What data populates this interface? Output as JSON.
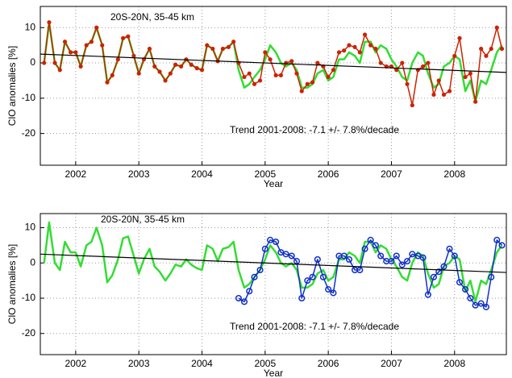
{
  "chart_data": [
    {
      "type": "line",
      "annotations": [
        "20S-20N, 35-45 km",
        "Trend 2001-2008: -7.1 +/- 7.8%/decade"
      ],
      "xlabel": "Year",
      "ylabel": "ClO anomalies [%]",
      "xlim": [
        2001.44,
        2008.82
      ],
      "xticks": [
        2002,
        2003,
        2004,
        2005,
        2006,
        2007,
        2008
      ],
      "ylim": [
        -29,
        16
      ],
      "yticks": [
        -20,
        -10,
        0,
        10
      ],
      "grid": true,
      "series": [
        {
          "color": "#33dd33",
          "marker": "none",
          "x": [
            2001.5,
            2001.58,
            2001.67,
            2001.75,
            2001.83,
            2001.92,
            2002,
            2002.08,
            2002.17,
            2002.25,
            2002.33,
            2002.42,
            2002.5,
            2002.58,
            2002.67,
            2002.75,
            2002.83,
            2002.92,
            2003,
            2003.08,
            2003.17,
            2003.25,
            2003.33,
            2003.42,
            2003.5,
            2003.58,
            2003.67,
            2003.75,
            2003.83,
            2003.92,
            2004,
            2004.08,
            2004.17,
            2004.25,
            2004.33,
            2004.42,
            2004.5,
            2004.58,
            2004.67,
            2004.75,
            2004.83,
            2004.92,
            2005,
            2005.08,
            2005.17,
            2005.25,
            2005.33,
            2005.42,
            2005.5,
            2005.58,
            2005.67,
            2005.75,
            2005.83,
            2005.92,
            2006,
            2006.08,
            2006.17,
            2006.25,
            2006.33,
            2006.42,
            2006.5,
            2006.58,
            2006.67,
            2006.75,
            2006.83,
            2006.92,
            2007,
            2007.08,
            2007.17,
            2007.25,
            2007.33,
            2007.42,
            2007.5,
            2007.58,
            2007.67,
            2007.75,
            2007.83,
            2007.92,
            2008,
            2008.08,
            2008.17,
            2008.25,
            2008.33,
            2008.42,
            2008.5,
            2008.58,
            2008.67,
            2008.75
          ],
          "values": [
            0,
            11.5,
            0,
            -2,
            6,
            3,
            3,
            -1,
            5,
            6,
            10,
            5,
            -5.5,
            -3.5,
            1,
            7,
            7.5,
            2,
            -3,
            1,
            4,
            -1,
            -2.5,
            -5,
            -3,
            -0.5,
            -1,
            1,
            -0.5,
            -1.5,
            -2,
            5,
            4,
            0.5,
            4,
            4.5,
            6,
            -2,
            -7,
            -6,
            -4,
            -2,
            1,
            5,
            3,
            0,
            -1,
            0,
            -2,
            -7,
            -7,
            -6,
            -3,
            -2,
            -5,
            -4,
            1,
            1,
            3,
            2,
            0,
            6,
            6,
            3,
            5,
            4,
            1,
            -1,
            -4,
            -5,
            0,
            3,
            2,
            -3,
            -7,
            -6,
            -1,
            0,
            2,
            1,
            -8,
            -5,
            -11,
            -5,
            -6,
            -2,
            3,
            5
          ]
        },
        {
          "color": "#cc2200",
          "marker": "dot",
          "x": [
            2001.5,
            2001.58,
            2001.67,
            2001.75,
            2001.83,
            2001.92,
            2002,
            2002.08,
            2002.17,
            2002.25,
            2002.33,
            2002.42,
            2002.5,
            2002.58,
            2002.67,
            2002.75,
            2002.83,
            2002.92,
            2003,
            2003.08,
            2003.17,
            2003.25,
            2003.33,
            2003.42,
            2003.5,
            2003.58,
            2003.67,
            2003.75,
            2003.83,
            2003.92,
            2004,
            2004.08,
            2004.17,
            2004.25,
            2004.33,
            2004.42,
            2004.5,
            2004.58,
            2004.67,
            2004.75,
            2004.83,
            2004.92,
            2005,
            2005.08,
            2005.17,
            2005.25,
            2005.33,
            2005.42,
            2005.5,
            2005.58,
            2005.67,
            2005.75,
            2005.83,
            2005.92,
            2006,
            2006.08,
            2006.17,
            2006.25,
            2006.33,
            2006.42,
            2006.5,
            2006.58,
            2006.67,
            2006.75,
            2006.83,
            2006.92,
            2007,
            2007.08,
            2007.17,
            2007.25,
            2007.33,
            2007.42,
            2007.5,
            2007.58,
            2007.67,
            2007.75,
            2007.83,
            2007.92,
            2008,
            2008.08,
            2008.17,
            2008.25,
            2008.33,
            2008.42,
            2008.5,
            2008.58,
            2008.67,
            2008.75
          ],
          "values": [
            0,
            11.5,
            0,
            -2,
            6,
            3,
            3,
            -1,
            5,
            6,
            10,
            5,
            -5.5,
            -3.5,
            1,
            7,
            7.5,
            2,
            -3,
            1,
            4,
            -1,
            -2.5,
            -5,
            -3,
            -0.5,
            -1,
            1,
            -0.5,
            -1.5,
            -2,
            5,
            4,
            0.5,
            4,
            4.5,
            6,
            0,
            -4,
            -3,
            -6,
            -5,
            3,
            1,
            -3.5,
            -3.5,
            0,
            0.5,
            -3,
            -8,
            -6,
            -5.5,
            0,
            -1,
            -4,
            -2,
            3,
            3.5,
            5,
            4.5,
            3,
            8,
            5,
            4,
            0,
            -1,
            -1,
            -2,
            0,
            -6,
            -12,
            -2,
            -1,
            0,
            -9,
            -5,
            -9,
            -8,
            2,
            7,
            -4,
            -3,
            -11,
            4,
            2,
            4,
            10,
            4
          ]
        }
      ],
      "trend": {
        "color": "#000000",
        "x": [
          2001.44,
          2008.82
        ],
        "values": [
          2.5,
          -2.7
        ]
      }
    },
    {
      "type": "line",
      "annotations": [
        "20S-20N, 35-45 km",
        "Trend 2001-2008: -7.1 +/- 7.8%/decade"
      ],
      "xlabel": "Year",
      "ylabel": "ClO anomalies [%]",
      "xlim": [
        2001.44,
        2008.82
      ],
      "xticks": [
        2002,
        2003,
        2004,
        2005,
        2006,
        2007,
        2008
      ],
      "ylim": [
        -26,
        14
      ],
      "yticks": [
        -20,
        -10,
        0,
        10
      ],
      "grid": true,
      "series": [
        {
          "color": "#33dd33",
          "marker": "none",
          "x": [
            2001.5,
            2001.58,
            2001.67,
            2001.75,
            2001.83,
            2001.92,
            2002,
            2002.08,
            2002.17,
            2002.25,
            2002.33,
            2002.42,
            2002.5,
            2002.58,
            2002.67,
            2002.75,
            2002.83,
            2002.92,
            2003,
            2003.08,
            2003.17,
            2003.25,
            2003.33,
            2003.42,
            2003.5,
            2003.58,
            2003.67,
            2003.75,
            2003.83,
            2003.92,
            2004,
            2004.08,
            2004.17,
            2004.25,
            2004.33,
            2004.42,
            2004.5,
            2004.58,
            2004.67,
            2004.75,
            2004.83,
            2004.92,
            2005,
            2005.08,
            2005.17,
            2005.25,
            2005.33,
            2005.42,
            2005.5,
            2005.58,
            2005.67,
            2005.75,
            2005.83,
            2005.92,
            2006,
            2006.08,
            2006.17,
            2006.25,
            2006.33,
            2006.42,
            2006.5,
            2006.58,
            2006.67,
            2006.75,
            2006.83,
            2006.92,
            2007,
            2007.08,
            2007.17,
            2007.25,
            2007.33,
            2007.42,
            2007.5,
            2007.58,
            2007.67,
            2007.75,
            2007.83,
            2007.92,
            2008,
            2008.08,
            2008.17,
            2008.25,
            2008.33,
            2008.42,
            2008.5,
            2008.58,
            2008.67,
            2008.75
          ],
          "values": [
            0,
            11.5,
            0,
            -2,
            6,
            3,
            3,
            -1,
            5,
            6,
            10,
            5,
            -5.5,
            -3.5,
            1,
            7,
            7.5,
            2,
            -3,
            1,
            4,
            -1,
            -2.5,
            -5,
            -3,
            -0.5,
            -1,
            1,
            -0.5,
            -1.5,
            -2,
            5,
            4,
            0.5,
            4,
            4.5,
            6,
            -2,
            -7,
            -6,
            -4,
            -2,
            1,
            5,
            3,
            0,
            -1,
            0,
            -2,
            -7,
            -7,
            -6,
            -3,
            -2,
            -5,
            -4,
            1,
            1,
            3,
            2,
            0,
            6,
            6,
            3,
            5,
            4,
            1,
            -1,
            -4,
            -5,
            0,
            3,
            2,
            -3,
            -7,
            -6,
            -1,
            0,
            2,
            1,
            -8,
            -5,
            -11,
            -5,
            -6,
            -2,
            3,
            5
          ]
        },
        {
          "color": "#1030c8",
          "marker": "circle",
          "x": [
            2004.58,
            2004.67,
            2004.75,
            2004.83,
            2004.92,
            2005,
            2005.08,
            2005.17,
            2005.25,
            2005.33,
            2005.42,
            2005.5,
            2005.58,
            2005.67,
            2005.75,
            2005.83,
            2005.92,
            2006,
            2006.08,
            2006.17,
            2006.25,
            2006.33,
            2006.42,
            2006.5,
            2006.58,
            2006.67,
            2006.75,
            2006.83,
            2006.92,
            2007,
            2007.08,
            2007.17,
            2007.25,
            2007.33,
            2007.42,
            2007.5,
            2007.58,
            2007.67,
            2007.75,
            2007.83,
            2007.92,
            2008,
            2008.08,
            2008.17,
            2008.25,
            2008.33,
            2008.42,
            2008.5,
            2008.58,
            2008.67,
            2008.75
          ],
          "values": [
            -10,
            -11,
            -8,
            -4,
            -2,
            4,
            6.5,
            6,
            3,
            2.5,
            2,
            0.5,
            -10,
            -5,
            -4,
            1,
            -4,
            -7.5,
            -8.5,
            2,
            2,
            1,
            -2,
            -2,
            4,
            6.5,
            5,
            2,
            0.5,
            0.5,
            2,
            -0.5,
            0.5,
            2.5,
            2,
            1.5,
            -9,
            -4,
            -2.5,
            -1,
            4,
            2,
            -5.5,
            -7.5,
            -10,
            -12,
            -11.5,
            -12.5,
            -4,
            6.5,
            5
          ]
        }
      ],
      "trend": {
        "color": "#000000",
        "x": [
          2001.44,
          2008.82
        ],
        "values": [
          2.5,
          -2.7
        ]
      }
    }
  ]
}
